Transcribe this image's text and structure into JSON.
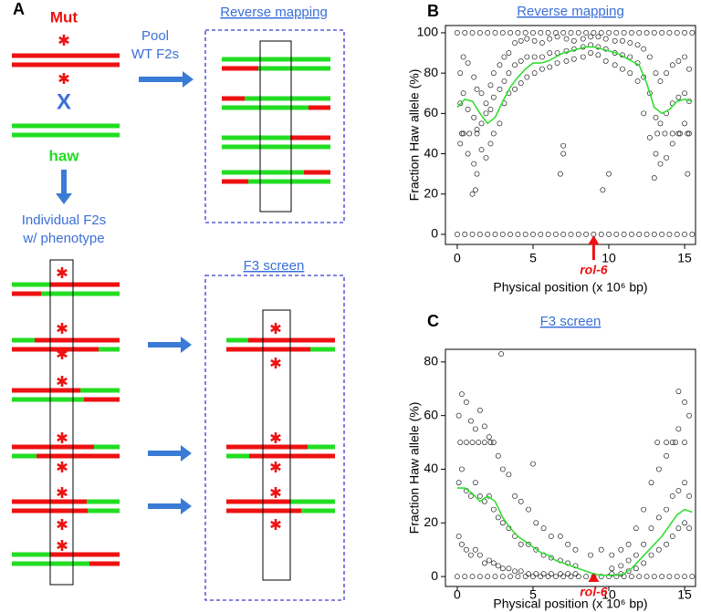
{
  "panels": {
    "a": "A",
    "b": "B",
    "c": "C"
  },
  "diagram": {
    "mut": "Mut",
    "cross": "X",
    "haw": "haw",
    "pool": [
      "Pool",
      "WT F2s"
    ],
    "individual": [
      "Individual F2s",
      "w/ phenotype"
    ],
    "reverse_title": "Reverse mapping",
    "f3_title": "F3 screen"
  },
  "chart_data": [
    {
      "type": "scatter",
      "title": "Reverse mapping",
      "xlabel": "Physical position (x 10⁶ bp)",
      "ylabel": "Fraction Haw allele (%)",
      "xlim": [
        -0.78,
        15.72
      ],
      "ylim": [
        -5,
        103.6
      ],
      "xticks": [
        0,
        5,
        10,
        15
      ],
      "yticks": [
        0,
        20,
        40,
        60,
        80,
        100
      ],
      "point_color": "#000000",
      "points": [
        {
          "x": [
            0.2,
            0.4,
            0.7,
            1.1,
            1.3,
            1.6,
            1.9,
            2.2,
            2.4,
            2.8,
            3.1,
            3.4,
            3.8,
            4.2,
            4.6,
            5.1,
            5.6,
            6.1,
            6.6,
            7.2,
            7.7,
            8.3,
            8.8,
            9.3,
            9.8,
            10.4,
            10.9,
            11.4,
            11.9,
            12.3,
            12.7,
            13.1,
            13.4,
            13.8,
            14.2,
            14.6,
            15.0,
            15.3
          ],
          "y": [
            80,
            88,
            85,
            78,
            72,
            70,
            65,
            74,
            80,
            84,
            88,
            90,
            95,
            96,
            97,
            96,
            95,
            97,
            98,
            97,
            96,
            97,
            98,
            98,
            97,
            96,
            96,
            95,
            94,
            92,
            88,
            80,
            76,
            80,
            84,
            86,
            88,
            82
          ]
        },
        {
          "x": [
            0.2,
            0.4,
            0.7,
            1.1,
            1.3,
            1.6,
            1.9,
            2.2,
            2.4,
            2.8,
            3.1,
            3.4,
            3.8,
            4.2,
            4.6,
            5.1,
            5.6,
            6.1,
            6.6,
            7.2,
            7.7,
            8.3,
            8.8,
            9.3,
            9.8,
            10.4,
            10.9,
            11.4,
            11.9,
            12.3,
            12.7,
            13.1,
            13.4,
            13.8,
            14.2,
            14.6,
            15.0,
            15.3
          ],
          "y": [
            65,
            70,
            62,
            58,
            52,
            55,
            60,
            62,
            68,
            72,
            76,
            80,
            84,
            86,
            88,
            88,
            88,
            90,
            90,
            91,
            92,
            93,
            94,
            93,
            92,
            90,
            89,
            88,
            85,
            78,
            70,
            58,
            55,
            60,
            65,
            68,
            70,
            66
          ]
        },
        {
          "x": [
            0.2,
            0.4,
            0.7,
            1.1,
            1.3,
            1.6,
            1.9,
            2.2,
            2.4,
            2.8,
            3.1,
            3.4,
            3.8,
            4.2,
            4.6,
            5.1,
            5.6,
            6.1,
            6.6,
            7.2,
            7.7,
            8.3,
            8.8,
            9.3,
            9.8,
            10.4,
            10.9,
            11.4,
            11.9,
            12.3,
            12.7,
            13.1,
            13.4,
            13.8,
            14.2,
            14.6,
            15.0,
            15.3
          ],
          "y": [
            45,
            50,
            40,
            35,
            30,
            42,
            38,
            45,
            50,
            55,
            65,
            70,
            72,
            75,
            78,
            80,
            82,
            83,
            85,
            86,
            87,
            88,
            90,
            89,
            86,
            84,
            82,
            80,
            76,
            60,
            48,
            40,
            35,
            38,
            45,
            50,
            55,
            50
          ]
        },
        {
          "x": [
            1.0,
            1.2,
            6.8,
            7.0,
            7.0,
            9.6,
            10.0,
            13.0,
            15.2
          ],
          "y": [
            20,
            22,
            30,
            44,
            40,
            22,
            30,
            28,
            30
          ]
        },
        {
          "x": [
            0.3,
            0.8,
            1.3,
            13.2,
            13.7,
            14.2,
            14.7,
            15.2
          ],
          "y": [
            50,
            50,
            50,
            50,
            50,
            50,
            50,
            50
          ]
        },
        {
          "x": [
            0,
            0.5,
            1,
            1.5,
            2,
            2.5,
            3,
            3.5,
            4,
            4.5,
            5,
            5.5,
            6,
            6.5,
            7,
            7.5,
            8,
            8.5,
            9,
            9.5,
            10,
            10.5,
            11,
            11.5,
            12,
            12.5,
            13,
            13.5,
            14,
            14.5,
            15,
            15.5
          ],
          "y": [
            0,
            0,
            0,
            0,
            0,
            0,
            0,
            0,
            0,
            0,
            0,
            0,
            0,
            0,
            0,
            0,
            0,
            0,
            0,
            0,
            0,
            0,
            0,
            0,
            0,
            0,
            0,
            0,
            0,
            0,
            0,
            0
          ]
        },
        {
          "x": [
            0,
            0.5,
            1,
            1.5,
            2,
            2.5,
            3,
            3.5,
            4,
            4.5,
            5,
            5.5,
            6,
            6.5,
            7,
            7.5,
            8,
            8.5,
            9,
            9.5,
            10,
            10.5,
            11,
            11.5,
            12,
            12.5,
            13,
            13.5,
            14,
            14.5,
            15,
            15.5
          ],
          "y": [
            100,
            100,
            100,
            100,
            100,
            100,
            100,
            100,
            100,
            100,
            100,
            100,
            100,
            100,
            100,
            100,
            100,
            100,
            100,
            100,
            100,
            100,
            100,
            100,
            100,
            100,
            100,
            100,
            100,
            100,
            100,
            100
          ]
        }
      ],
      "line": {
        "color": "#33dd33",
        "x": [
          0,
          0.5,
          1,
          1.5,
          2,
          2.5,
          3,
          3.5,
          4,
          4.5,
          5,
          5.5,
          6,
          6.5,
          7,
          7.5,
          8,
          8.5,
          9,
          9.5,
          10,
          10.5,
          11,
          11.5,
          12,
          12.5,
          13,
          13.5,
          14,
          14.5,
          15,
          15.5
        ],
        "y": [
          63,
          67,
          66,
          60,
          55,
          58,
          66,
          73,
          78,
          82,
          85,
          85,
          86,
          88,
          90,
          91,
          92,
          93,
          93,
          92,
          91,
          90,
          88,
          86,
          84,
          75,
          63,
          60,
          62,
          66,
          67,
          66
        ]
      },
      "annotation": {
        "text": "rol-6",
        "x": 9,
        "color": "#ee1111"
      }
    },
    {
      "type": "scatter",
      "title": "F3 screen",
      "xlabel": "Physical position (x 10⁶ bp)",
      "ylabel": "Fraction Haw allele (%)",
      "xlim": [
        -0.78,
        15.72
      ],
      "ylim": [
        -3.7,
        84.7
      ],
      "xticks": [
        0,
        5,
        10,
        15
      ],
      "yticks": [
        0,
        20,
        40,
        60,
        80
      ],
      "point_color": "#000000",
      "points": [
        {
          "x": [
            0.1,
            0.3,
            0.6,
            0.9,
            1.2,
            1.5,
            1.8,
            2.1,
            2.4,
            2.7,
            3.0,
            3.4,
            3.8,
            4.2,
            4.7,
            5.2,
            5.7,
            6.2,
            6.8,
            7.3,
            7.8,
            10.2,
            10.8,
            11.3,
            11.8,
            12.3,
            12.8,
            13.3,
            13.8,
            14.2,
            14.6,
            15.0,
            15.3
          ],
          "y": [
            60,
            68,
            65,
            58,
            55,
            62,
            56,
            52,
            50,
            45,
            40,
            38,
            30,
            28,
            25,
            20,
            18,
            15,
            15,
            12,
            10,
            8,
            10,
            12,
            18,
            25,
            35,
            40,
            45,
            50,
            55,
            65,
            60
          ]
        },
        {
          "x": [
            0.1,
            0.3,
            0.6,
            0.9,
            1.2,
            1.5,
            1.8,
            2.1,
            2.4,
            2.7,
            3.0,
            3.4,
            3.8,
            4.2,
            4.7,
            5.2,
            5.7,
            6.2,
            6.8,
            7.3,
            7.8,
            10.2,
            10.8,
            11.3,
            11.8,
            12.3,
            12.8,
            13.3,
            13.8,
            14.2,
            14.6,
            15.0,
            15.3
          ],
          "y": [
            35,
            40,
            32,
            30,
            35,
            30,
            28,
            30,
            25,
            22,
            20,
            18,
            15,
            12,
            12,
            10,
            8,
            7,
            6,
            5,
            4,
            3,
            4,
            6,
            8,
            12,
            18,
            22,
            25,
            30,
            32,
            35,
            30
          ]
        },
        {
          "x": [
            0.1,
            0.3,
            0.6,
            0.9,
            1.2,
            1.5,
            1.8,
            2.1,
            2.4,
            2.7,
            3.0,
            3.4,
            3.8,
            4.2,
            4.7,
            5.2,
            5.7,
            6.2,
            6.8,
            7.3,
            7.8,
            10.2,
            10.8,
            11.3,
            11.8,
            12.3,
            12.8,
            13.3,
            13.8,
            14.2,
            14.6,
            15.0,
            15.3
          ],
          "y": [
            15,
            12,
            10,
            8,
            10,
            8,
            5,
            6,
            5,
            4,
            3,
            3,
            2,
            2,
            1,
            1,
            1,
            1,
            1,
            1,
            1,
            1,
            1,
            2,
            3,
            5,
            8,
            10,
            12,
            15,
            18,
            20,
            18
          ]
        },
        {
          "x": [
            0.2,
            0.6,
            1.0,
            1.4,
            1.8,
            2.2,
            13.2,
            13.8,
            14.4,
            15.0
          ],
          "y": [
            50,
            50,
            50,
            50,
            50,
            50,
            50,
            50,
            50,
            50
          ]
        },
        {
          "x": [
            2.9,
            5.0,
            8.8,
            9.5,
            14.6
          ],
          "y": [
            83,
            42,
            8,
            10,
            69
          ]
        },
        {
          "x": [
            0,
            0.5,
            1,
            1.5,
            2,
            2.5,
            3,
            3.5,
            4,
            4.5,
            5,
            5.5,
            6,
            6.5,
            7,
            7.5,
            8,
            8.5,
            9,
            9.5,
            10,
            10.5,
            11,
            11.5,
            12,
            12.5,
            13,
            13.5,
            14,
            14.5,
            15,
            15.5
          ],
          "y": [
            0,
            0,
            0,
            0,
            0,
            0,
            0,
            0,
            0,
            0,
            0,
            0,
            0,
            0,
            0,
            0,
            0,
            0,
            0,
            0,
            0,
            0,
            0,
            0,
            0,
            0,
            0,
            0,
            0,
            0,
            0,
            0
          ]
        }
      ],
      "line": {
        "color": "#33dd33",
        "x": [
          0,
          0.5,
          1,
          1.5,
          2,
          2.5,
          3,
          3.5,
          4,
          4.5,
          5,
          5.5,
          6,
          6.5,
          7,
          7.5,
          8,
          8.5,
          9,
          9.5,
          10,
          10.5,
          11,
          11.5,
          12,
          12.5,
          13,
          13.5,
          14,
          14.5,
          15,
          15.5
        ],
        "y": [
          33,
          33,
          31,
          28,
          30,
          28,
          22,
          18,
          15,
          13,
          11,
          9,
          8,
          6,
          5,
          4,
          3,
          2,
          1,
          0.5,
          0.5,
          0.5,
          1,
          3,
          6,
          9,
          12,
          15,
          19,
          23,
          25,
          24
        ]
      },
      "annotation": {
        "text": "rol-6",
        "x": 9,
        "color": "#ee1111"
      }
    }
  ]
}
